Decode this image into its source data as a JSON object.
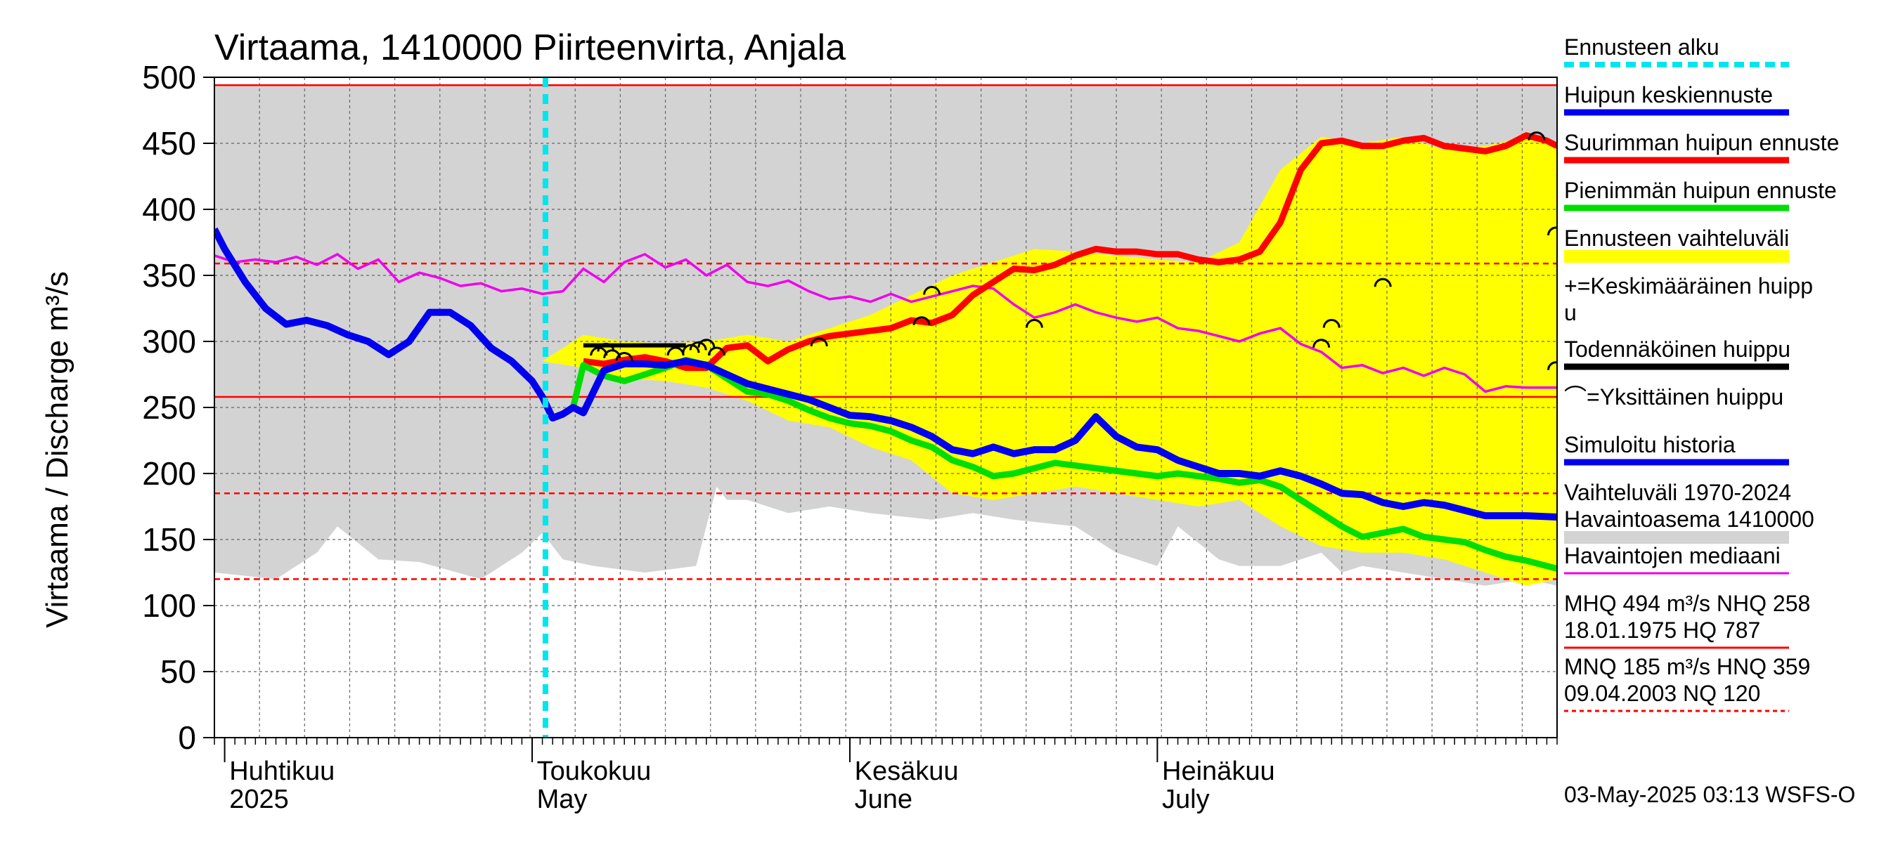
{
  "chart_data": {
    "type": "line",
    "title": "Virtaama, 1410000 Piirteenvirta, Anjala",
    "ylabel": "Virtaama / Discharge   m³/s",
    "ylim": [
      0,
      500
    ],
    "yticks": [
      0,
      50,
      100,
      150,
      200,
      250,
      300,
      350,
      400,
      450,
      500
    ],
    "x_unit": "days since 2025-03-25",
    "xlim": [
      0,
      131
    ],
    "month_labels": [
      {
        "fi": "Huhtikuu",
        "en": "2025",
        "day": 2
      },
      {
        "fi": "Toukokuu",
        "en": "May",
        "day": 32
      },
      {
        "fi": "Kesäkuu",
        "en": "June",
        "day": 63
      },
      {
        "fi": "Heinäkuu",
        "en": "July",
        "day": 93
      }
    ],
    "forecast_start_day": 32.3,
    "reference_lines": [
      {
        "name": "MHQ",
        "value": 494,
        "style": "solid"
      },
      {
        "name": "NHQ",
        "value": 258,
        "style": "solid"
      },
      {
        "name": "HNQ",
        "value": 359,
        "style": "dashed"
      },
      {
        "name": "MNQ",
        "value": 185,
        "style": "dashed"
      },
      {
        "name": "NQ",
        "value": 120,
        "style": "dashed"
      }
    ],
    "historical_range": {
      "name": "Vaihteluväli 1970-2024 Havaintoasema 1410000",
      "x": [
        0,
        6,
        10,
        12,
        16,
        20,
        26,
        30,
        32,
        34,
        37,
        42,
        47,
        49,
        50,
        52,
        56,
        60,
        64,
        70,
        74,
        78,
        84,
        88,
        92,
        94,
        98,
        100,
        104,
        108,
        110,
        112,
        116,
        120,
        124,
        128,
        131
      ],
      "low": [
        125,
        120,
        140,
        160,
        135,
        133,
        120,
        140,
        155,
        135,
        130,
        125,
        130,
        190,
        180,
        180,
        170,
        175,
        170,
        165,
        170,
        165,
        160,
        140,
        130,
        160,
        135,
        130,
        130,
        140,
        125,
        130,
        125,
        120,
        115,
        120,
        115
      ],
      "high": [
        494,
        494,
        494,
        494,
        494,
        494,
        494,
        494,
        494,
        494,
        494,
        494,
        494,
        494,
        494,
        494,
        494,
        494,
        494,
        494,
        494,
        494,
        494,
        494,
        494,
        494,
        494,
        494,
        494,
        494,
        494,
        494,
        494,
        494,
        494,
        494,
        494
      ]
    },
    "series": [
      {
        "name": "Havaintojen mediaani",
        "color": "#ee00ee",
        "x": [
          0,
          2,
          4,
          6,
          8,
          10,
          12,
          14,
          16,
          18,
          20,
          22,
          24,
          26,
          28,
          30,
          32,
          34,
          36,
          38,
          40,
          42,
          44,
          46,
          48,
          50,
          52,
          54,
          56,
          58,
          60,
          62,
          64,
          66,
          68,
          70,
          72,
          74,
          76,
          78,
          80,
          82,
          84,
          86,
          88,
          90,
          92,
          94,
          96,
          98,
          100,
          102,
          104,
          106,
          108,
          110,
          112,
          114,
          116,
          118,
          120,
          122,
          124,
          126,
          128,
          131
        ],
        "y": [
          365,
          360,
          362,
          360,
          364,
          358,
          366,
          355,
          362,
          345,
          352,
          348,
          342,
          344,
          338,
          340,
          336,
          338,
          355,
          345,
          360,
          366,
          356,
          362,
          350,
          358,
          345,
          342,
          346,
          338,
          332,
          334,
          330,
          336,
          330,
          334,
          338,
          342,
          340,
          328,
          318,
          322,
          328,
          322,
          318,
          315,
          318,
          310,
          308,
          304,
          300,
          306,
          310,
          298,
          292,
          280,
          282,
          276,
          280,
          274,
          280,
          275,
          262,
          266,
          265,
          265
        ]
      },
      {
        "name": "Ennusteen vaihteluväli",
        "color": "#ffff00",
        "band": true,
        "x": [
          32,
          36,
          40,
          44,
          48,
          52,
          56,
          60,
          64,
          68,
          72,
          76,
          80,
          84,
          88,
          92,
          96,
          100,
          104,
          108,
          112,
          116,
          120,
          124,
          128,
          131
        ],
        "low": [
          285,
          280,
          272,
          270,
          265,
          255,
          240,
          235,
          220,
          210,
          185,
          180,
          185,
          190,
          185,
          180,
          175,
          180,
          160,
          145,
          140,
          140,
          135,
          125,
          115,
          120
        ],
        "high": [
          285,
          305,
          300,
          298,
          300,
          305,
          300,
          310,
          320,
          335,
          350,
          360,
          370,
          368,
          365,
          362,
          360,
          375,
          430,
          455,
          450,
          455,
          445,
          448,
          455,
          448
        ]
      },
      {
        "name": "Suurimman huipun ennuste",
        "color": "#ff0000",
        "x": [
          36,
          38,
          40,
          42,
          44,
          46,
          48,
          50,
          52,
          54,
          56,
          58,
          60,
          62,
          64,
          66,
          68,
          70,
          72,
          74,
          76,
          78,
          80,
          82,
          84,
          86,
          88,
          90,
          92,
          94,
          96,
          98,
          100,
          102,
          104,
          106,
          108,
          110,
          112,
          114,
          116,
          118,
          120,
          122,
          124,
          126,
          128,
          130,
          131
        ],
        "y": [
          285,
          283,
          286,
          288,
          285,
          280,
          280,
          295,
          297,
          285,
          294,
          300,
          304,
          306,
          308,
          310,
          316,
          314,
          320,
          335,
          345,
          355,
          354,
          358,
          365,
          370,
          368,
          368,
          366,
          366,
          362,
          360,
          362,
          368,
          390,
          430,
          450,
          452,
          448,
          448,
          452,
          454,
          448,
          446,
          444,
          448,
          456,
          452,
          448
        ]
      },
      {
        "name": "Pienimmän huipun ennuste",
        "color": "#00dd00",
        "x": [
          35,
          36,
          38,
          40,
          42,
          44,
          46,
          48,
          50,
          52,
          54,
          56,
          58,
          60,
          62,
          64,
          66,
          68,
          70,
          72,
          74,
          76,
          78,
          80,
          82,
          84,
          86,
          88,
          90,
          92,
          94,
          96,
          98,
          100,
          102,
          104,
          106,
          108,
          110,
          112,
          114,
          116,
          118,
          120,
          122,
          124,
          126,
          128,
          131
        ],
        "y": [
          250,
          282,
          274,
          270,
          275,
          280,
          286,
          282,
          272,
          262,
          260,
          255,
          248,
          242,
          238,
          236,
          232,
          225,
          220,
          210,
          205,
          198,
          200,
          204,
          208,
          206,
          204,
          202,
          200,
          198,
          200,
          198,
          196,
          193,
          195,
          190,
          180,
          170,
          160,
          152,
          155,
          158,
          152,
          150,
          148,
          142,
          137,
          134,
          128
        ]
      },
      {
        "name": "Huipun keskiennuste",
        "color": "#0000ee",
        "x": [
          0,
          1,
          3,
          5,
          7,
          9,
          11,
          13,
          15,
          17,
          19,
          21,
          23,
          25,
          27,
          29,
          31,
          32,
          33,
          34,
          35,
          36,
          38,
          40,
          42,
          44,
          46,
          48,
          50,
          52,
          54,
          56,
          58,
          60,
          62,
          64,
          66,
          68,
          70,
          72,
          74,
          76,
          78,
          80,
          82,
          84,
          86,
          88,
          90,
          92,
          94,
          96,
          98,
          100,
          102,
          104,
          106,
          108,
          110,
          112,
          114,
          116,
          118,
          120,
          122,
          124,
          126,
          128,
          131
        ],
        "y": [
          385,
          370,
          345,
          325,
          313,
          316,
          312,
          305,
          300,
          290,
          300,
          322,
          322,
          312,
          295,
          285,
          270,
          258,
          242,
          245,
          250,
          246,
          278,
          283,
          283,
          282,
          285,
          282,
          275,
          268,
          264,
          260,
          256,
          250,
          244,
          243,
          240,
          235,
          228,
          218,
          215,
          220,
          215,
          218,
          218,
          225,
          243,
          228,
          220,
          218,
          210,
          205,
          200,
          200,
          198,
          202,
          198,
          192,
          185,
          184,
          178,
          175,
          178,
          176,
          172,
          168,
          168,
          168,
          167
        ]
      },
      {
        "name": "Todennäköinen huippu",
        "color": "#000000",
        "x": [
          36,
          46
        ],
        "y": [
          297,
          297
        ]
      }
    ],
    "peaks_single": [
      {
        "x": 37.5,
        "y": 292
      },
      {
        "x": 38.2,
        "y": 295
      },
      {
        "x": 38.8,
        "y": 290
      },
      {
        "x": 40,
        "y": 288
      },
      {
        "x": 45,
        "y": 292
      },
      {
        "x": 46.5,
        "y": 294
      },
      {
        "x": 47.2,
        "y": 296
      },
      {
        "x": 48,
        "y": 298
      },
      {
        "x": 49,
        "y": 292
      },
      {
        "x": 59,
        "y": 299
      },
      {
        "x": 69,
        "y": 315
      },
      {
        "x": 70,
        "y": 338
      },
      {
        "x": 80,
        "y": 313
      },
      {
        "x": 108,
        "y": 298
      },
      {
        "x": 109,
        "y": 313
      },
      {
        "x": 114,
        "y": 344
      },
      {
        "x": 129,
        "y": 455
      },
      {
        "x": 130.9,
        "y": 383
      },
      {
        "x": 130.9,
        "y": 281
      }
    ],
    "legend": [
      {
        "label": "Ennusteen alku",
        "color": "#00e5ee",
        "style": "dotted"
      },
      {
        "label": "Huipun keskiennuste",
        "color": "#0000ee",
        "style": "line"
      },
      {
        "label": "Suurimman huipun ennuste",
        "color": "#ff0000",
        "style": "line"
      },
      {
        "label": "Pienimmän huipun ennuste",
        "color": "#00dd00",
        "style": "line"
      },
      {
        "label": "Ennusteen vaihteluväli",
        "color": "#ffff00",
        "style": "band"
      },
      {
        "label": "+=Keskimääräinen huipp",
        "label2": "u",
        "color": "#000000",
        "style": "none"
      },
      {
        "label": "Todennäköinen huippu",
        "color": "#000000",
        "style": "line"
      },
      {
        "label": "⌒=Yksittäinen huippu",
        "color": "#000000",
        "style": "none"
      },
      {
        "label": "Simuloitu historia",
        "color": "#0000ee",
        "style": "line"
      },
      {
        "label": "Vaihteluväli 1970-2024",
        "label2": " Havaintoasema 1410000",
        "color": "#d3d3d3",
        "style": "band"
      },
      {
        "label": "Havaintojen mediaani",
        "color": "#ee00ee",
        "style": "thin"
      },
      {
        "label": "MHQ  494 m³/s NHQ  258",
        "label2": "18.01.1975 HQ  787",
        "color": "#ff0000",
        "style": "thin"
      },
      {
        "label": "MNQ  185 m³/s HNQ  359",
        "label2": "09.04.2003 NQ  120",
        "color": "#ff0000",
        "style": "dashed"
      }
    ],
    "footer": "03-May-2025 03:13 WSFS-O"
  }
}
